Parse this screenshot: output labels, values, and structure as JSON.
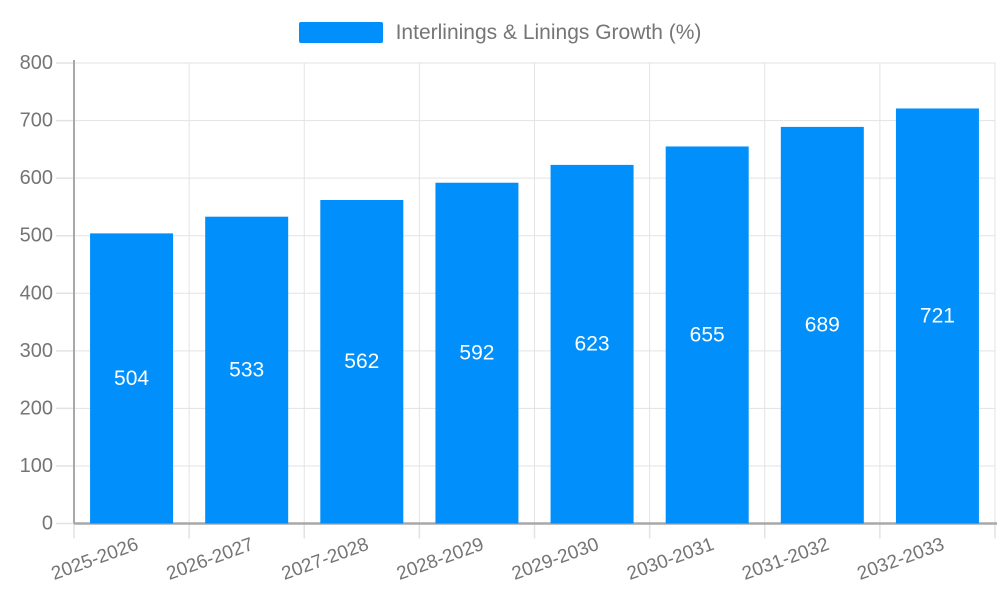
{
  "chart_data": {
    "type": "bar",
    "title": "",
    "legend": {
      "label": "Interlinings & Linings Growth (%)",
      "position": "top"
    },
    "categories": [
      "2025-2026",
      "2026-2027",
      "2027-2028",
      "2028-2029",
      "2029-2030",
      "2030-2031",
      "2031-2032",
      "2032-2033"
    ],
    "series": [
      {
        "name": "Interlinings & Linings Growth (%)",
        "values": [
          504,
          533,
          562,
          592,
          623,
          655,
          689,
          721
        ]
      }
    ],
    "value_labels_shown": true,
    "xlabel": "",
    "ylabel": "",
    "ylim": [
      0,
      800
    ],
    "yticks": [
      0,
      100,
      200,
      300,
      400,
      500,
      600,
      700,
      800
    ],
    "grid": true,
    "x_label_rotation_deg": -20,
    "colors": {
      "bar": "#008ffb",
      "grid": "#e3e3e3",
      "axis_line": "#a8a8a8",
      "tick_text": "#757575",
      "value_label_text": "#ffffff",
      "legend_text": "#757575"
    }
  }
}
